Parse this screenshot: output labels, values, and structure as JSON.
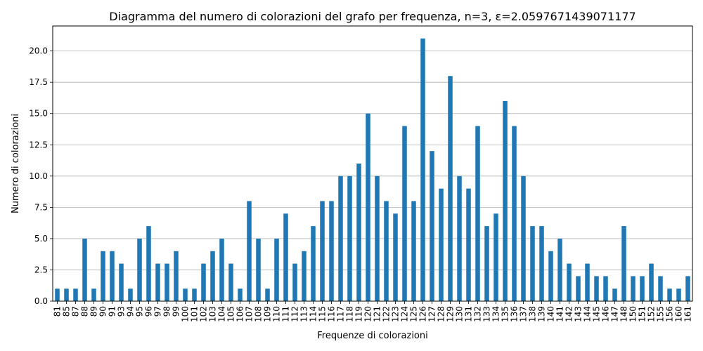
{
  "chart_data": {
    "type": "bar",
    "title": "Diagramma del numero di colorazioni del grafo per frequenza, n=3, ε=2.0597671439071177",
    "xlabel": "Frequenze di colorazioni",
    "ylabel": "Numero di colorazioni",
    "ylim": [
      0,
      22
    ],
    "yticks": [
      "0.0",
      "2.5",
      "5.0",
      "7.5",
      "10.0",
      "12.5",
      "15.0",
      "17.5",
      "20.0"
    ],
    "grid": "horizontal",
    "bar_color": "#1f77b4",
    "categories": [
      "81",
      "85",
      "87",
      "88",
      "89",
      "90",
      "91",
      "93",
      "94",
      "95",
      "96",
      "97",
      "98",
      "99",
      "100",
      "101",
      "102",
      "103",
      "104",
      "105",
      "106",
      "107",
      "108",
      "109",
      "110",
      "111",
      "112",
      "113",
      "114",
      "115",
      "116",
      "117",
      "118",
      "119",
      "120",
      "121",
      "122",
      "123",
      "124",
      "125",
      "126",
      "127",
      "128",
      "129",
      "130",
      "131",
      "132",
      "133",
      "134",
      "135",
      "136",
      "137",
      "138",
      "139",
      "140",
      "141",
      "142",
      "143",
      "144",
      "145",
      "146",
      "147",
      "148",
      "150",
      "151",
      "152",
      "155",
      "156",
      "160",
      "161"
    ],
    "values": [
      1,
      1,
      1,
      5,
      1,
      4,
      4,
      3,
      1,
      5,
      6,
      3,
      3,
      4,
      1,
      1,
      3,
      4,
      5,
      3,
      1,
      8,
      5,
      1,
      5,
      7,
      3,
      4,
      6,
      8,
      8,
      10,
      10,
      11,
      15,
      10,
      8,
      7,
      14,
      8,
      21,
      12,
      9,
      18,
      10,
      9,
      14,
      6,
      7,
      16,
      14,
      10,
      6,
      6,
      4,
      5,
      3,
      2,
      3,
      2,
      2,
      1,
      6,
      2,
      2,
      3,
      2,
      1,
      1,
      2
    ]
  }
}
